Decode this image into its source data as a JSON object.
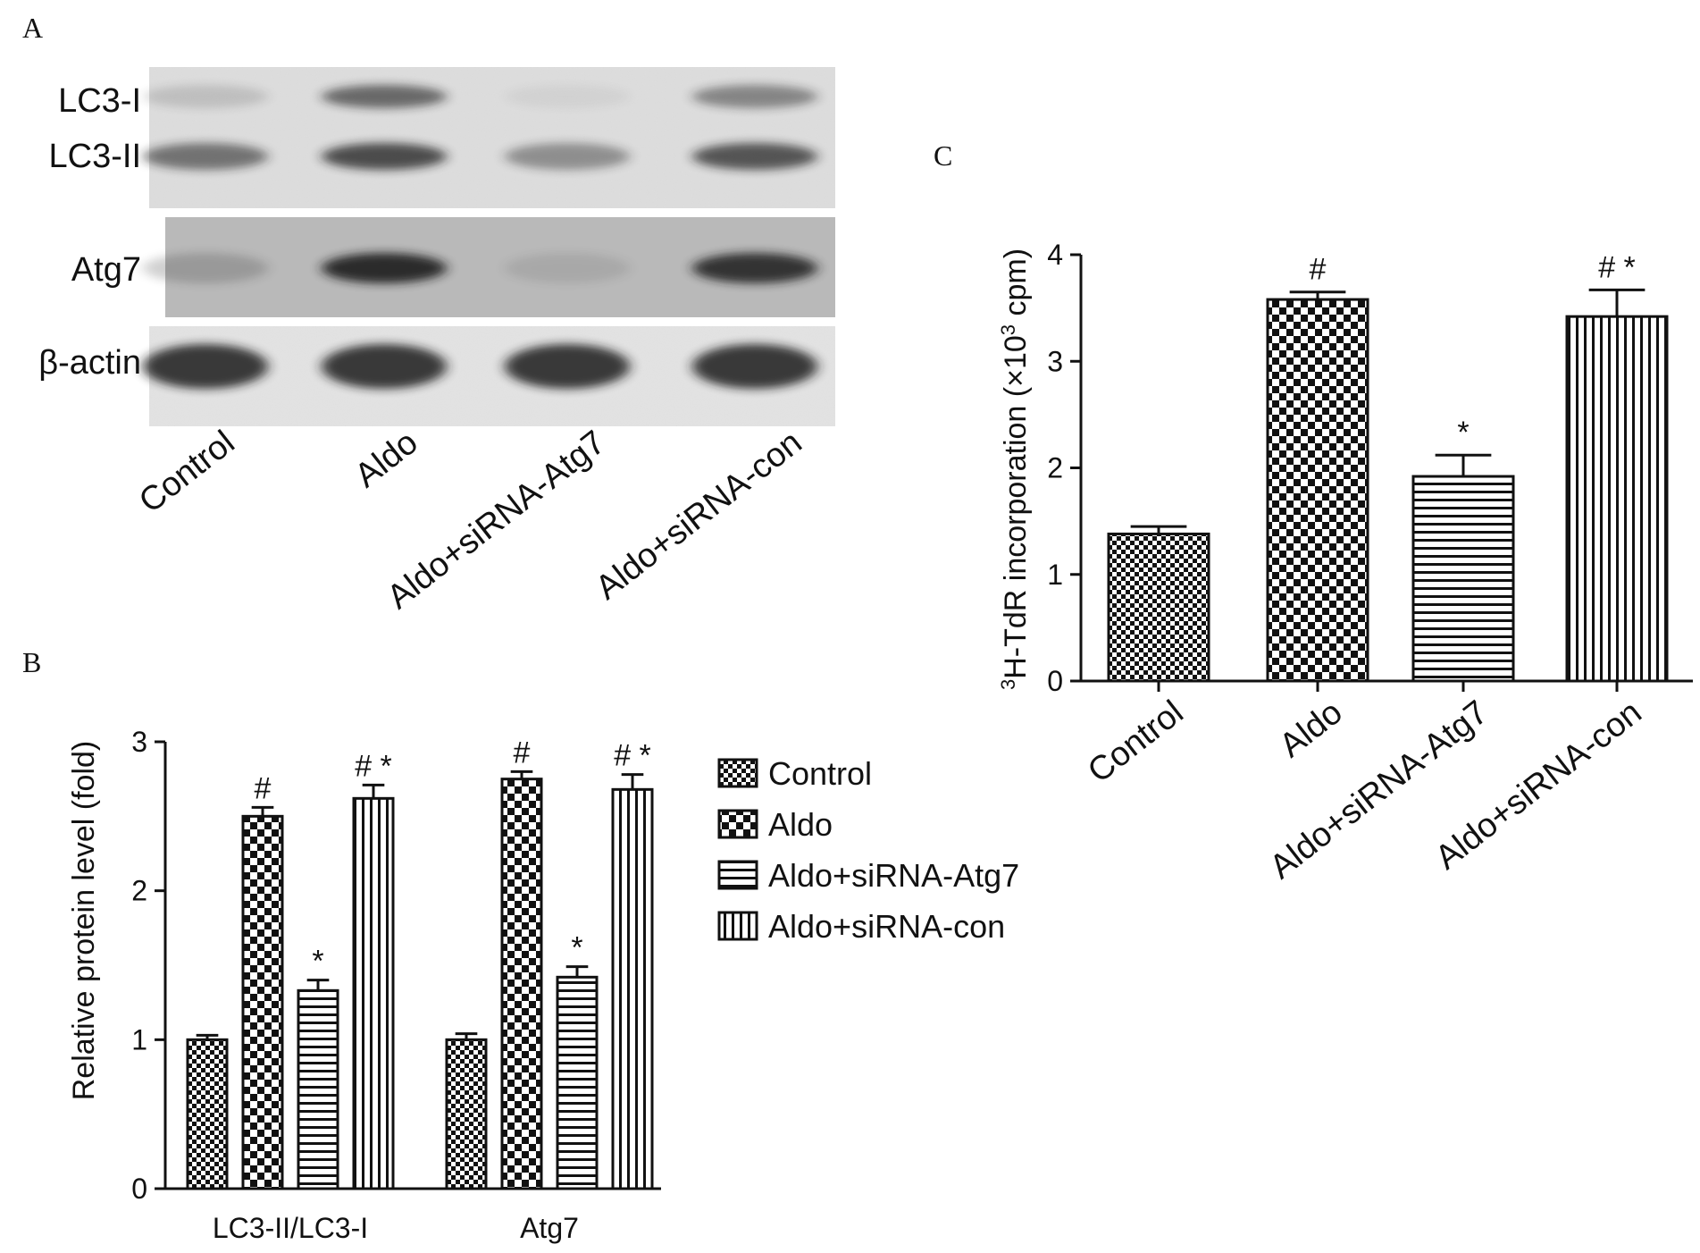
{
  "panels": {
    "a": "A",
    "b": "B",
    "c": "C"
  },
  "blot": {
    "lanes": [
      "Control",
      "Aldo",
      "Aldo+siRNA-Atg7",
      "Aldo+siRNA-con"
    ],
    "rows": [
      {
        "labels": [
          "LC3-I",
          "LC3-II"
        ]
      },
      {
        "labels": [
          "Atg7"
        ]
      },
      {
        "labels": [
          "β-actin"
        ]
      }
    ],
    "band_intensity": {
      "LC3-I": [
        0.15,
        0.6,
        0.05,
        0.45
      ],
      "LC3-II": [
        0.55,
        0.75,
        0.4,
        0.7
      ],
      "Atg7": [
        0.2,
        0.9,
        0.1,
        0.85
      ],
      "β-actin": [
        0.85,
        0.85,
        0.85,
        0.85
      ]
    }
  },
  "legend": {
    "entries": [
      {
        "label": "Control",
        "pattern": "fine-checker"
      },
      {
        "label": "Aldo",
        "pattern": "coarse-checker"
      },
      {
        "label": "Aldo+siRNA-Atg7",
        "pattern": "horizontal-lines"
      },
      {
        "label": "Aldo+siRNA-con",
        "pattern": "vertical-lines"
      }
    ]
  },
  "colors": {
    "ink": "#111111",
    "blot_bg": "#dcdcdc",
    "band": "#1a1a1a"
  },
  "chart_data": [
    {
      "id": "B",
      "type": "bar",
      "categories": [
        "LC3-II/LC3-I",
        "Atg7"
      ],
      "series": [
        {
          "name": "Control",
          "values": [
            1.0,
            1.0
          ],
          "errors": [
            0.03,
            0.04
          ],
          "annotations": [
            "",
            ""
          ]
        },
        {
          "name": "Aldo",
          "values": [
            2.5,
            2.75
          ],
          "errors": [
            0.06,
            0.05
          ],
          "annotations": [
            "#",
            "#"
          ]
        },
        {
          "name": "Aldo+siRNA-Atg7",
          "values": [
            1.33,
            1.42
          ],
          "errors": [
            0.07,
            0.07
          ],
          "annotations": [
            "*",
            "*"
          ]
        },
        {
          "name": "Aldo+siRNA-con",
          "values": [
            2.62,
            2.68
          ],
          "errors": [
            0.09,
            0.1
          ],
          "annotations": [
            "# *",
            "# *"
          ]
        }
      ],
      "ylabel": "Relative protein level (fold)",
      "ylim": [
        0,
        3
      ],
      "yticks": [
        "0",
        "1",
        "2",
        "3"
      ],
      "grid": false,
      "legend": "right"
    },
    {
      "id": "C",
      "type": "bar",
      "categories": [
        "Control",
        "Aldo",
        "Aldo+siRNA-Atg7",
        "Aldo+siRNA-con"
      ],
      "values": [
        1.38,
        3.58,
        1.92,
        3.42
      ],
      "errors": [
        0.07,
        0.07,
        0.2,
        0.25
      ],
      "annotations": [
        "",
        "#",
        "*",
        "# *"
      ],
      "ylabel_main": "H-TdR incorporation (×10",
      "ylabel_sup_prefix": "3",
      "ylabel_sup_exp": "3",
      "ylabel_end": " cpm)",
      "ylim": [
        0,
        4
      ],
      "yticks": [
        "0",
        "1",
        "2",
        "3",
        "4"
      ],
      "grid": false
    }
  ]
}
